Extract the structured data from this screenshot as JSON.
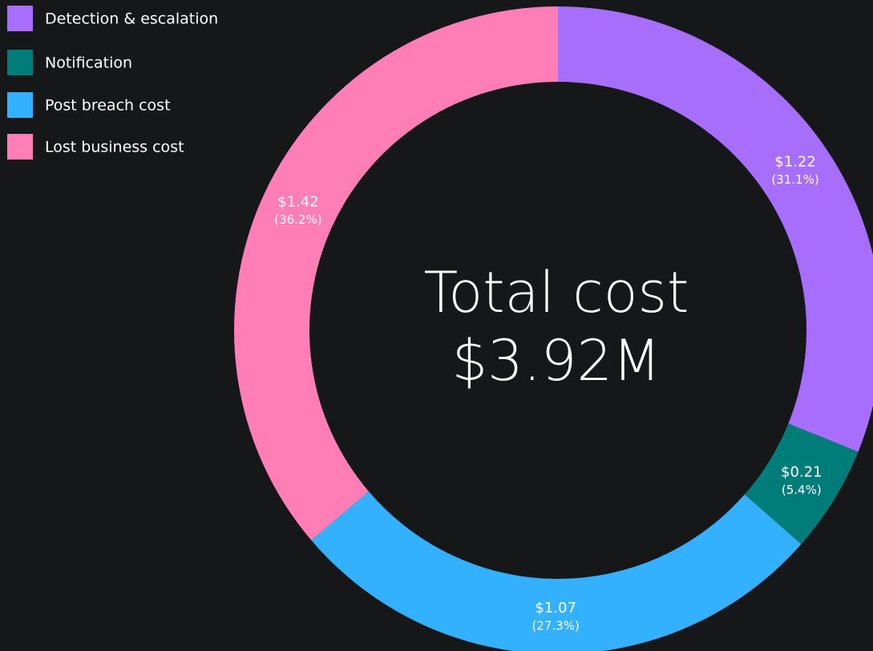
{
  "chart_data": {
    "type": "donut",
    "categories": [
      "Detection & escalation",
      "Notification",
      "Post breach cost",
      "Lost business cost"
    ],
    "values": [
      1.22,
      0.21,
      1.07,
      1.42
    ],
    "value_labels": [
      "$1.22",
      "$0.21",
      "$1.07",
      "$1.42"
    ],
    "shares": [
      31.1,
      5.4,
      27.3,
      36.2
    ],
    "share_labels": [
      "(31.1%)",
      "(5.4%)",
      "(27.3%)",
      "(36.2%)"
    ],
    "colors": [
      "#a66efa",
      "#007d79",
      "#33b1ff",
      "#ff7eb6"
    ],
    "center_title": "Total cost",
    "center_value": "$3.92M",
    "legend": "top-left"
  }
}
